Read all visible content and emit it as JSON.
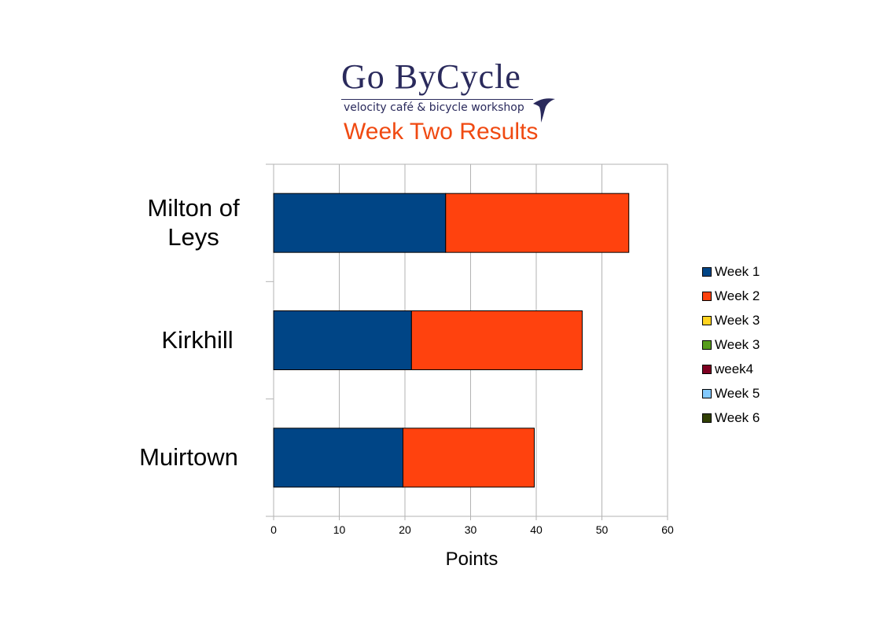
{
  "header": {
    "logo_title": "Go ByCycle",
    "logo_tagline": "velocity café & bicycle workshop"
  },
  "chart_data": {
    "type": "bar",
    "orientation": "horizontal",
    "stacked": true,
    "title": "Week Two Results",
    "xlabel": "Points",
    "ylabel": "",
    "xlim": [
      0,
      60
    ],
    "x_ticks": [
      0,
      10,
      20,
      30,
      40,
      50,
      60
    ],
    "grid": "vertical",
    "legend_position": "right",
    "categories": [
      {
        "label_lines": [
          "Milton of",
          "Leys"
        ]
      },
      {
        "label_lines": [
          "Kirkhill"
        ]
      },
      {
        "label_lines": [
          "Muirtown"
        ]
      }
    ],
    "series": [
      {
        "name": "Week 1",
        "color": "#004586",
        "values": [
          26.2,
          21,
          19.7
        ]
      },
      {
        "name": "Week 2",
        "color": "#ff420e",
        "values": [
          27.9,
          26,
          20
        ]
      },
      {
        "name": "Week 3",
        "color": "#ffd320",
        "values": [
          0,
          0,
          0
        ]
      },
      {
        "name": "Week 3",
        "color": "#579d1c",
        "values": [
          0,
          0,
          0
        ]
      },
      {
        "name": "week4",
        "color": "#7e0021",
        "values": [
          0,
          0,
          0
        ]
      },
      {
        "name": "Week 5",
        "color": "#83caff",
        "values": [
          0,
          0,
          0
        ]
      },
      {
        "name": "Week 6",
        "color": "#314004",
        "values": [
          0,
          0,
          0
        ]
      }
    ]
  }
}
